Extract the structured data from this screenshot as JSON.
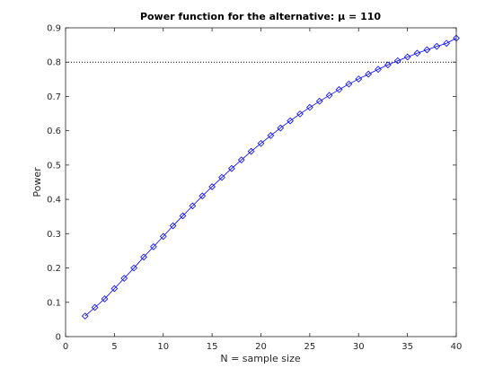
{
  "chart_data": {
    "type": "line",
    "title": "Power function for the alternative: μ = 110",
    "xlabel": "N = sample size",
    "ylabel": "Power",
    "xlim": [
      0,
      40
    ],
    "ylim": [
      0,
      0.9
    ],
    "xticks": [
      0,
      5,
      10,
      15,
      20,
      25,
      30,
      35,
      40
    ],
    "yticks": [
      0,
      0.1,
      0.2,
      0.3,
      0.4,
      0.5,
      0.6,
      0.7,
      0.8,
      0.9
    ],
    "grid": false,
    "reference_line": {
      "y": 0.8,
      "style": "dotted"
    },
    "series": [
      {
        "color": "#0000ff",
        "marker": "diamond",
        "x": [
          2,
          3,
          4,
          5,
          6,
          7,
          8,
          9,
          10,
          11,
          12,
          13,
          14,
          15,
          16,
          17,
          18,
          19,
          20,
          21,
          22,
          23,
          24,
          25,
          26,
          27,
          28,
          29,
          30,
          31,
          32,
          33,
          34,
          35,
          36,
          37,
          38,
          39,
          40
        ],
        "y": [
          0.06,
          0.085,
          0.11,
          0.14,
          0.17,
          0.2,
          0.232,
          0.262,
          0.292,
          0.323,
          0.352,
          0.381,
          0.41,
          0.437,
          0.464,
          0.49,
          0.515,
          0.54,
          0.563,
          0.586,
          0.608,
          0.629,
          0.649,
          0.668,
          0.686,
          0.703,
          0.72,
          0.736,
          0.751,
          0.765,
          0.779,
          0.792,
          0.804,
          0.815,
          0.826,
          0.836,
          0.846,
          0.855,
          0.87
        ]
      }
    ]
  }
}
